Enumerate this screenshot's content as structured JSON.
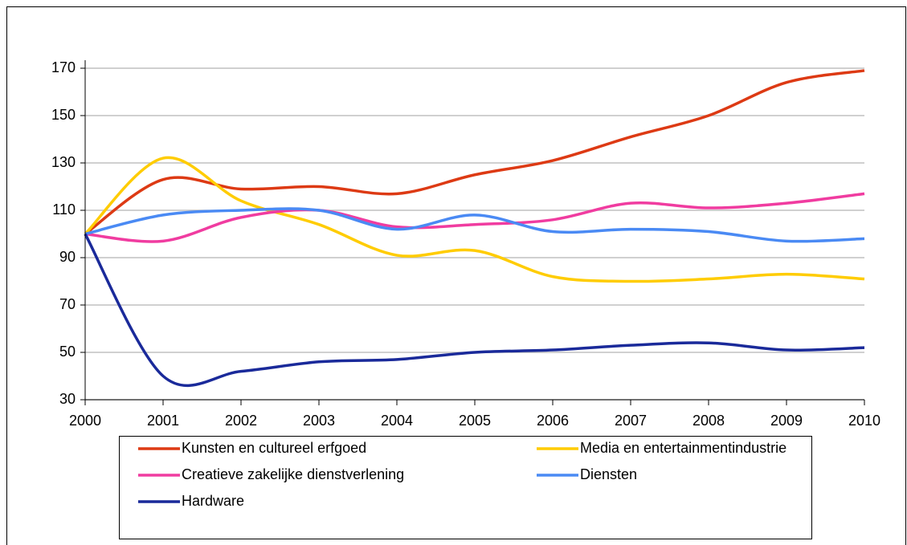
{
  "chart_data": {
    "type": "line",
    "smooth": true,
    "x": [
      2000,
      2001,
      2002,
      2003,
      2004,
      2005,
      2006,
      2007,
      2008,
      2009,
      2010
    ],
    "xlim": [
      2000,
      2010
    ],
    "xticks": [
      2000,
      2001,
      2002,
      2003,
      2004,
      2005,
      2006,
      2007,
      2008,
      2009,
      2010
    ],
    "ylim": [
      30,
      170
    ],
    "yticks": [
      30,
      50,
      70,
      90,
      110,
      130,
      150,
      170
    ],
    "grid": true,
    "legend": "bottom",
    "series": [
      {
        "name": "Kunsten en cultureel erfgoed",
        "color": "#dd3a14",
        "values": [
          100,
          123,
          119,
          120,
          117,
          125,
          131,
          141,
          150,
          164,
          169
        ]
      },
      {
        "name": "Media en entertainmentindustrie",
        "color": "#ffcc00",
        "values": [
          100,
          132,
          114,
          104,
          91,
          93,
          82,
          80,
          81,
          83,
          81
        ]
      },
      {
        "name": "Creatieve zakelijke dienstverlening",
        "color": "#f03ca0",
        "values": [
          100,
          97,
          107,
          110,
          103,
          104,
          106,
          113,
          111,
          113,
          117
        ]
      },
      {
        "name": "Diensten",
        "color": "#4a8af4",
        "values": [
          100,
          108,
          110,
          110,
          102,
          108,
          101,
          102,
          101,
          97,
          98
        ]
      },
      {
        "name": "Hardware",
        "color": "#1a2a9a",
        "values": [
          100,
          40,
          42,
          46,
          47,
          50,
          51,
          53,
          54,
          51,
          52
        ]
      }
    ]
  }
}
